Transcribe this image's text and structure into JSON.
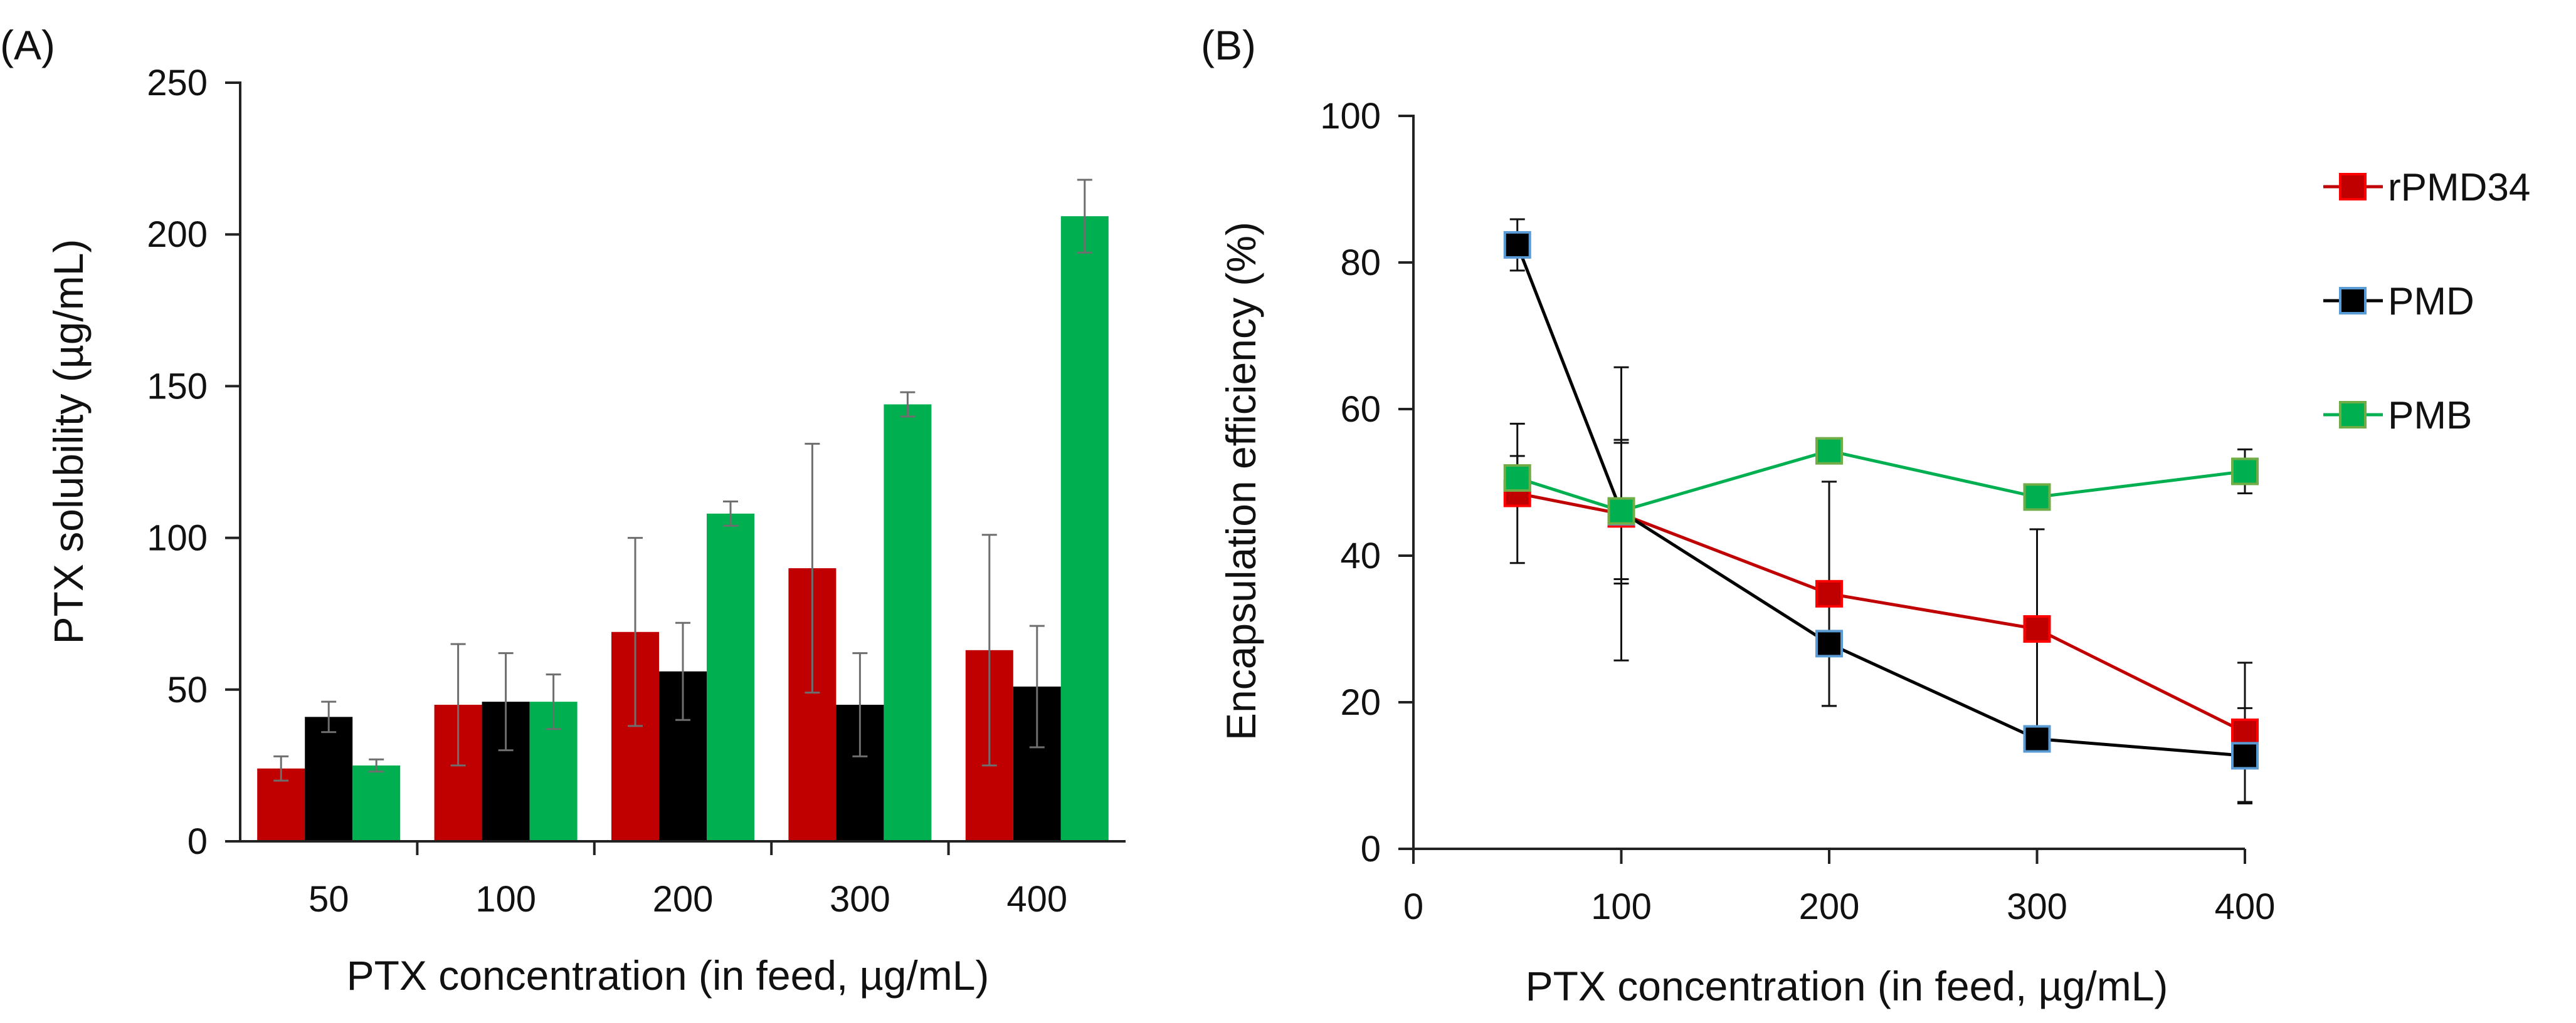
{
  "chart_data": [
    {
      "panel_label": "(A)",
      "type": "bar",
      "xlabel": "PTX concentration (in feed, µg/mL)",
      "ylabel": "PTX solubility (µg/mL)",
      "ylim": [
        0,
        250
      ],
      "yticks": [
        0,
        50,
        100,
        150,
        200,
        250
      ],
      "categories": [
        "50",
        "100",
        "200",
        "300",
        "400"
      ],
      "series": [
        {
          "name": "rPMD34",
          "color": "#c00000",
          "values": [
            24,
            45,
            69,
            90,
            63
          ],
          "errors": [
            4,
            20,
            31,
            41,
            38
          ]
        },
        {
          "name": "PMD",
          "color": "#000000",
          "values": [
            41,
            46,
            56,
            45,
            51
          ],
          "errors": [
            5,
            16,
            16,
            17,
            20
          ]
        },
        {
          "name": "PMB",
          "color": "#00b050",
          "values": [
            25,
            46,
            108,
            144,
            206
          ],
          "errors": [
            2,
            9,
            4,
            4,
            12
          ]
        }
      ]
    },
    {
      "panel_label": "(B)",
      "type": "line",
      "xlabel": "PTX concentration (in feed, µg/mL)",
      "ylabel": "Encapsulation efficiency (%)",
      "xlim": [
        0,
        400
      ],
      "ylim": [
        0,
        100
      ],
      "xticks": [
        0,
        100,
        200,
        300,
        400
      ],
      "yticks": [
        0,
        20,
        40,
        60,
        80,
        100
      ],
      "x": [
        50,
        100,
        200,
        300,
        400
      ],
      "series": [
        {
          "name": "rPMD34",
          "color": "#c00000",
          "marker_edge": "#ff0000",
          "values": [
            48.5,
            45.7,
            34.8,
            30.0,
            15.9
          ],
          "errors": [
            9.5,
            20.0,
            15.3,
            13.6,
            9.5
          ]
        },
        {
          "name": "PMD",
          "color": "#000000",
          "marker_edge": "#5b9bd5",
          "values": [
            82.4,
            46.0,
            28.0,
            15.0,
            12.7
          ],
          "errors": [
            3.5,
            9.8,
            8.5,
            0.8,
            6.5
          ]
        },
        {
          "name": "PMB",
          "color": "#00b050",
          "marker_edge": "#70ad47",
          "values": [
            50.6,
            46.1,
            54.3,
            48.0,
            51.5
          ],
          "errors": [
            3.0,
            9.3,
            0.8,
            0.5,
            3.0
          ]
        }
      ]
    }
  ]
}
